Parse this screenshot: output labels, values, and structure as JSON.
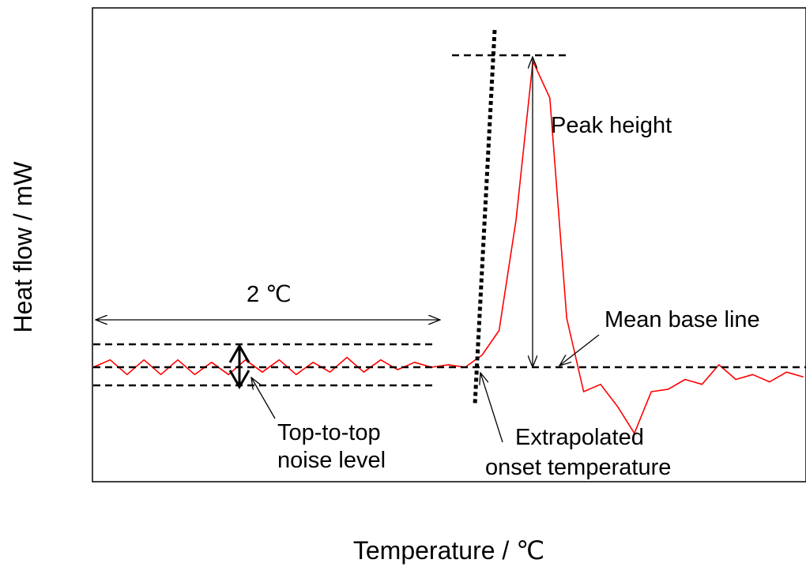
{
  "chart_data": {
    "type": "line",
    "title": "",
    "xlabel": "Temperature / ℃",
    "ylabel": "Heat flow / mW",
    "xticks": [],
    "yticks": [],
    "grid": false,
    "legend": "none",
    "series": [
      {
        "color": "#ff0000",
        "shape": "DSC trace: noisy flat baseline, sharp exothermic peak, dip and noisy recovery",
        "x": [
          0.0,
          0.1,
          0.2,
          0.3,
          0.4,
          0.5,
          0.6,
          0.7,
          0.8,
          0.9,
          1.0,
          1.1,
          1.2,
          1.3,
          1.4,
          1.5,
          1.6,
          1.7,
          1.8,
          1.9,
          2.0,
          2.1,
          2.2,
          2.3,
          2.4,
          2.5,
          2.6,
          2.7,
          2.8,
          2.9,
          3.0,
          3.1,
          3.2,
          3.3,
          3.4,
          3.5,
          3.6,
          3.7,
          3.8,
          3.9,
          4.0,
          4.1,
          4.2
        ],
        "y": [
          0.0,
          0.3,
          -0.3,
          0.3,
          -0.3,
          0.3,
          -0.3,
          0.2,
          -0.3,
          0.3,
          -0.2,
          0.3,
          -0.3,
          0.2,
          -0.2,
          0.4,
          -0.2,
          0.3,
          -0.1,
          0.2,
          0.0,
          0.1,
          0.0,
          0.5,
          1.5,
          6.0,
          12.5,
          11.0,
          2.0,
          -1.0,
          -0.7,
          -1.6,
          -2.7,
          -1.0,
          -0.9,
          -0.5,
          -0.7,
          0.1,
          -0.5,
          -0.3,
          -0.6,
          -0.2,
          -0.4
        ]
      }
    ],
    "annotations": {
      "span_label": "2 ℃",
      "peak_label": "Peak height",
      "baseline_label": "Mean base line",
      "noise_label_line1": "Top-to-top",
      "noise_label_line2": "noise level",
      "onset_label_line1": "Extrapolated",
      "onset_label_line2": "onset temperature"
    }
  }
}
